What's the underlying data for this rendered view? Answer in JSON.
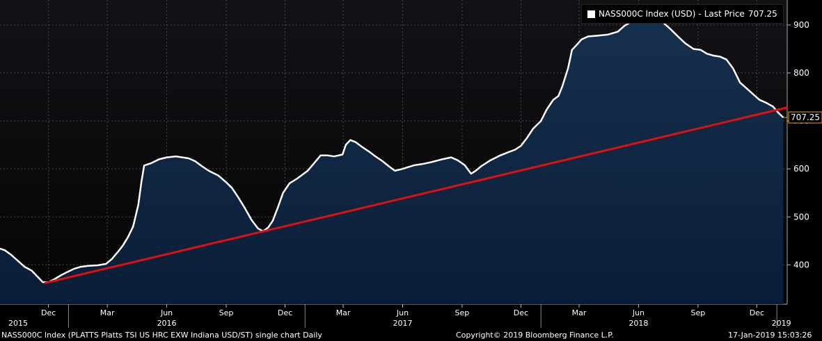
{
  "legend": {
    "series_name": "NASS000C Index (USD)",
    "separator": "-",
    "last_price_label": "Last Price",
    "last_price_value": "707.25"
  },
  "footer": {
    "description": "NASS000C Index (PLATTS Platts TSI US HRC EXW Indiana USD/ST) single chart  Daily",
    "copyright": "Copyright© 2019 Bloomberg Finance L.P.",
    "timestamp": "17-Jan-2019 15:03:26"
  },
  "colors": {
    "background": "#000000",
    "plot_top": "#131116",
    "area_fill_top": "#16304f",
    "area_fill_bottom": "#0a1d36",
    "series_line": "#ffffff",
    "trend_line": "#e01010",
    "last_price_marker": "#ff9900"
  },
  "chart_data": {
    "type": "area",
    "title": "",
    "xlabel": "",
    "ylabel": "",
    "ylim": [
      318,
      952
    ],
    "xlim": [
      "2015-09-17",
      "2019-01-17"
    ],
    "y_ticks": [
      400,
      500,
      600,
      700,
      800,
      900
    ],
    "x_month_ticks": [
      {
        "date": "2015-12-01",
        "label": "Dec"
      },
      {
        "date": "2016-03-01",
        "label": "Mar"
      },
      {
        "date": "2016-06-01",
        "label": "Jun"
      },
      {
        "date": "2016-09-01",
        "label": "Sep"
      },
      {
        "date": "2016-12-01",
        "label": "Dec"
      },
      {
        "date": "2017-03-01",
        "label": "Mar"
      },
      {
        "date": "2017-06-01",
        "label": "Jun"
      },
      {
        "date": "2017-09-01",
        "label": "Sep"
      },
      {
        "date": "2017-12-01",
        "label": "Dec"
      },
      {
        "date": "2018-03-01",
        "label": "Mar"
      },
      {
        "date": "2018-06-01",
        "label": "Jun"
      },
      {
        "date": "2018-09-01",
        "label": "Sep"
      },
      {
        "date": "2018-12-01",
        "label": "Dec"
      }
    ],
    "x_year_labels": [
      {
        "date": "2015-10-15",
        "label": "2015"
      },
      {
        "date": "2016-06-01",
        "label": "2016"
      },
      {
        "date": "2017-06-01",
        "label": "2017"
      },
      {
        "date": "2018-06-01",
        "label": "2018"
      },
      {
        "date": "2019-01-08",
        "label": "2019"
      }
    ],
    "x_year_boundaries": [
      "2016-01-01",
      "2017-01-01",
      "2018-01-01",
      "2019-01-01"
    ],
    "legend_position": "top-right",
    "grid": true,
    "series": [
      {
        "name": "NASS000C Index (USD)",
        "points": [
          [
            "2015-09-17",
            434
          ],
          [
            "2015-09-25",
            430
          ],
          [
            "2015-10-05",
            420
          ],
          [
            "2015-10-15",
            408
          ],
          [
            "2015-10-25",
            396
          ],
          [
            "2015-11-05",
            388
          ],
          [
            "2015-11-15",
            374
          ],
          [
            "2015-11-22",
            364
          ],
          [
            "2015-12-01",
            364
          ],
          [
            "2015-12-10",
            370
          ],
          [
            "2015-12-20",
            378
          ],
          [
            "2015-12-30",
            385
          ],
          [
            "2016-01-10",
            392
          ],
          [
            "2016-01-20",
            396
          ],
          [
            "2016-02-01",
            398
          ],
          [
            "2016-02-15",
            399
          ],
          [
            "2016-02-28",
            402
          ],
          [
            "2016-03-08",
            412
          ],
          [
            "2016-03-18",
            428
          ],
          [
            "2016-03-25",
            440
          ],
          [
            "2016-04-02",
            458
          ],
          [
            "2016-04-10",
            480
          ],
          [
            "2016-04-18",
            525
          ],
          [
            "2016-04-23",
            575
          ],
          [
            "2016-04-27",
            607
          ],
          [
            "2016-05-08",
            612
          ],
          [
            "2016-05-20",
            620
          ],
          [
            "2016-06-01",
            624
          ],
          [
            "2016-06-15",
            626
          ],
          [
            "2016-06-25",
            624
          ],
          [
            "2016-07-05",
            622
          ],
          [
            "2016-07-15",
            616
          ],
          [
            "2016-07-25",
            606
          ],
          [
            "2016-08-05",
            596
          ],
          [
            "2016-08-20",
            586
          ],
          [
            "2016-09-01",
            572
          ],
          [
            "2016-09-10",
            560
          ],
          [
            "2016-09-20",
            540
          ],
          [
            "2016-09-30",
            518
          ],
          [
            "2016-10-10",
            494
          ],
          [
            "2016-10-20",
            476
          ],
          [
            "2016-10-28",
            470
          ],
          [
            "2016-11-05",
            478
          ],
          [
            "2016-11-12",
            492
          ],
          [
            "2016-11-20",
            520
          ],
          [
            "2016-11-28",
            550
          ],
          [
            "2016-12-08",
            570
          ],
          [
            "2016-12-20",
            580
          ],
          [
            "2017-01-05",
            596
          ],
          [
            "2017-01-15",
            612
          ],
          [
            "2017-01-25",
            628
          ],
          [
            "2017-02-05",
            628
          ],
          [
            "2017-02-15",
            626
          ],
          [
            "2017-02-28",
            630
          ],
          [
            "2017-03-05",
            650
          ],
          [
            "2017-03-12",
            660
          ],
          [
            "2017-03-20",
            656
          ],
          [
            "2017-03-30",
            646
          ],
          [
            "2017-04-10",
            636
          ],
          [
            "2017-04-20",
            626
          ],
          [
            "2017-05-01",
            616
          ],
          [
            "2017-05-10",
            606
          ],
          [
            "2017-05-20",
            596
          ],
          [
            "2017-06-01",
            600
          ],
          [
            "2017-06-10",
            604
          ],
          [
            "2017-06-20",
            608
          ],
          [
            "2017-07-01",
            610
          ],
          [
            "2017-07-15",
            614
          ],
          [
            "2017-08-01",
            620
          ],
          [
            "2017-08-15",
            624
          ],
          [
            "2017-08-25",
            618
          ],
          [
            "2017-09-05",
            608
          ],
          [
            "2017-09-15",
            590
          ],
          [
            "2017-09-22",
            596
          ],
          [
            "2017-10-01",
            606
          ],
          [
            "2017-10-15",
            618
          ],
          [
            "2017-10-30",
            628
          ],
          [
            "2017-11-10",
            634
          ],
          [
            "2017-11-22",
            640
          ],
          [
            "2017-12-01",
            648
          ],
          [
            "2017-12-10",
            664
          ],
          [
            "2017-12-20",
            684
          ],
          [
            "2018-01-01",
            700
          ],
          [
            "2018-01-10",
            724
          ],
          [
            "2018-01-20",
            744
          ],
          [
            "2018-01-28",
            752
          ],
          [
            "2018-02-03",
            772
          ],
          [
            "2018-02-12",
            810
          ],
          [
            "2018-02-18",
            848
          ],
          [
            "2018-02-25",
            858
          ],
          [
            "2018-03-05",
            870
          ],
          [
            "2018-03-15",
            876
          ],
          [
            "2018-04-01",
            878
          ],
          [
            "2018-04-15",
            880
          ],
          [
            "2018-04-30",
            886
          ],
          [
            "2018-05-10",
            898
          ],
          [
            "2018-05-20",
            906
          ],
          [
            "2018-06-01",
            914
          ],
          [
            "2018-06-10",
            918
          ],
          [
            "2018-06-20",
            918
          ],
          [
            "2018-07-01",
            914
          ],
          [
            "2018-07-10",
            904
          ],
          [
            "2018-07-20",
            892
          ],
          [
            "2018-08-01",
            876
          ],
          [
            "2018-08-12",
            862
          ],
          [
            "2018-08-25",
            850
          ],
          [
            "2018-09-05",
            848
          ],
          [
            "2018-09-15",
            840
          ],
          [
            "2018-09-25",
            836
          ],
          [
            "2018-10-05",
            834
          ],
          [
            "2018-10-15",
            828
          ],
          [
            "2018-10-25",
            810
          ],
          [
            "2018-11-05",
            780
          ],
          [
            "2018-11-15",
            768
          ],
          [
            "2018-11-25",
            756
          ],
          [
            "2018-12-05",
            744
          ],
          [
            "2018-12-15",
            738
          ],
          [
            "2018-12-26",
            730
          ],
          [
            "2019-01-04",
            716
          ],
          [
            "2019-01-11",
            707.25
          ]
        ]
      },
      {
        "name": "",
        "kind": "trendline",
        "points": [
          [
            "2015-11-25",
            362
          ],
          [
            "2019-01-17",
            728
          ]
        ]
      }
    ]
  }
}
